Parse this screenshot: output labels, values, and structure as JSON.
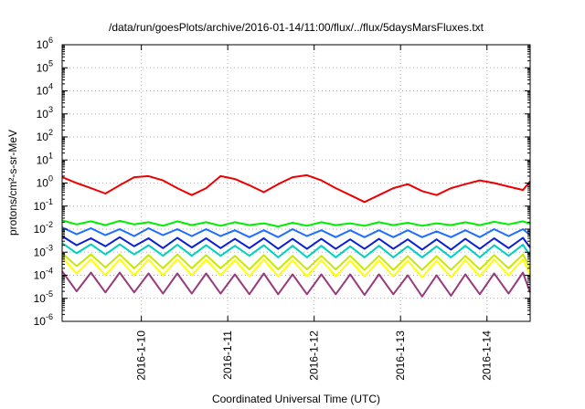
{
  "chart_data": {
    "type": "line",
    "title": "/data/run/goesPlots/archive/2016-01-14/11:00/flux/../flux/5daysMarsFluxes.txt",
    "xlabel": "Coordinated Universal Time (UTC)",
    "ylabel": "protons/cm²-s-sr-MeV",
    "yscale": "log",
    "ylim": [
      1e-06,
      1000000.0
    ],
    "y_ticks": [
      {
        "value": 1e-06,
        "base": "10",
        "exp": "-6"
      },
      {
        "value": 1e-05,
        "base": "10",
        "exp": "-5"
      },
      {
        "value": 0.0001,
        "base": "10",
        "exp": "-4"
      },
      {
        "value": 0.001,
        "base": "10",
        "exp": "-3"
      },
      {
        "value": 0.01,
        "base": "10",
        "exp": "-2"
      },
      {
        "value": 0.1,
        "base": "10",
        "exp": "-1"
      },
      {
        "value": 1.0,
        "base": "10",
        "exp": "0"
      },
      {
        "value": 10.0,
        "base": "10",
        "exp": "1"
      },
      {
        "value": 100.0,
        "base": "10",
        "exp": "2"
      },
      {
        "value": 1000.0,
        "base": "10",
        "exp": "3"
      },
      {
        "value": 10000.0,
        "base": "10",
        "exp": "4"
      },
      {
        "value": 100000.0,
        "base": "10",
        "exp": "5"
      },
      {
        "value": 1000000.0,
        "base": "10",
        "exp": "6"
      }
    ],
    "xlim": [
      "2016-01-09 02:00",
      "2016-01-14 12:00"
    ],
    "x_ticks": [
      {
        "value": "2016-01-10",
        "label": "2016-1-10"
      },
      {
        "value": "2016-01-11",
        "label": "2016-1-11"
      },
      {
        "value": "2016-01-12",
        "label": "2016-1-12"
      },
      {
        "value": "2016-01-13",
        "label": "2016-1-13"
      },
      {
        "value": "2016-01-14",
        "label": "2016-1-14"
      }
    ],
    "grid": true,
    "x": [
      "2016-01-09 02:00",
      "2016-01-09 06:00",
      "2016-01-09 10:00",
      "2016-01-09 14:00",
      "2016-01-09 18:00",
      "2016-01-09 22:00",
      "2016-01-10 02:00",
      "2016-01-10 06:00",
      "2016-01-10 10:00",
      "2016-01-10 14:00",
      "2016-01-10 18:00",
      "2016-01-10 22:00",
      "2016-01-11 02:00",
      "2016-01-11 06:00",
      "2016-01-11 10:00",
      "2016-01-11 14:00",
      "2016-01-11 18:00",
      "2016-01-11 22:00",
      "2016-01-12 02:00",
      "2016-01-12 06:00",
      "2016-01-12 10:00",
      "2016-01-12 14:00",
      "2016-01-12 18:00",
      "2016-01-12 22:00",
      "2016-01-13 02:00",
      "2016-01-13 06:00",
      "2016-01-13 10:00",
      "2016-01-13 14:00",
      "2016-01-13 18:00",
      "2016-01-13 22:00",
      "2016-01-14 02:00",
      "2016-01-14 06:00",
      "2016-01-14 10:00",
      "2016-01-14 12:00"
    ],
    "series": [
      {
        "color": "#ee0000",
        "values": [
          1.8,
          1.0,
          0.6,
          0.35,
          0.8,
          1.8,
          2.0,
          1.3,
          0.6,
          0.3,
          0.6,
          2.0,
          1.5,
          0.8,
          0.4,
          0.9,
          1.8,
          2.2,
          1.3,
          0.6,
          0.3,
          0.15,
          0.3,
          0.6,
          0.9,
          0.45,
          0.3,
          0.6,
          0.9,
          1.3,
          1.0,
          0.7,
          0.5,
          1.2
        ]
      },
      {
        "color": "#00ee00",
        "values": [
          0.024,
          0.016,
          0.022,
          0.015,
          0.023,
          0.016,
          0.02,
          0.014,
          0.022,
          0.015,
          0.02,
          0.014,
          0.02,
          0.015,
          0.018,
          0.013,
          0.019,
          0.014,
          0.02,
          0.015,
          0.018,
          0.014,
          0.02,
          0.015,
          0.019,
          0.014,
          0.018,
          0.015,
          0.02,
          0.015,
          0.021,
          0.016,
          0.022,
          0.017
        ]
      },
      {
        "color": "#1e6fff",
        "values": [
          0.012,
          0.006,
          0.011,
          0.0055,
          0.01,
          0.005,
          0.011,
          0.0055,
          0.01,
          0.005,
          0.01,
          0.005,
          0.009,
          0.0045,
          0.009,
          0.0045,
          0.01,
          0.005,
          0.009,
          0.0045,
          0.009,
          0.0045,
          0.009,
          0.0045,
          0.009,
          0.0045,
          0.008,
          0.0045,
          0.009,
          0.0045,
          0.01,
          0.005,
          0.01,
          0.0055
        ]
      },
      {
        "color": "#0a1fd8",
        "values": [
          0.005,
          0.002,
          0.004,
          0.0018,
          0.0045,
          0.0018,
          0.004,
          0.0015,
          0.0042,
          0.0016,
          0.004,
          0.0015,
          0.0038,
          0.0015,
          0.004,
          0.0014,
          0.0038,
          0.0014,
          0.0038,
          0.0014,
          0.0036,
          0.0014,
          0.0038,
          0.0014,
          0.0036,
          0.0013,
          0.0036,
          0.0013,
          0.0038,
          0.0014,
          0.004,
          0.0015,
          0.0042,
          0.0016
        ]
      },
      {
        "color": "#00d0c0",
        "values": [
          0.0025,
          0.0009,
          0.0022,
          0.0008,
          0.0022,
          0.0008,
          0.002,
          0.0007,
          0.0021,
          0.0007,
          0.002,
          0.0007,
          0.0019,
          0.0007,
          0.002,
          0.0006,
          0.0019,
          0.0006,
          0.0019,
          0.0006,
          0.0018,
          0.0006,
          0.0019,
          0.0006,
          0.0018,
          0.0006,
          0.0018,
          0.0006,
          0.0019,
          0.0006,
          0.002,
          0.0007,
          0.0021,
          0.0007
        ]
      },
      {
        "color": "#c8e800",
        "values": [
          0.0009,
          0.00025,
          0.0008,
          0.00022,
          0.0008,
          0.0002,
          0.00075,
          0.0002,
          0.0008,
          0.0002,
          0.00075,
          0.0002,
          0.0007,
          0.00018,
          0.00075,
          0.00018,
          0.0007,
          0.00018,
          0.0007,
          0.00018,
          0.0007,
          0.00017,
          0.0007,
          0.00017,
          0.00068,
          0.00017,
          0.00068,
          0.00017,
          0.0007,
          0.00018,
          0.00075,
          0.0002,
          0.0008,
          0.00021
        ]
      },
      {
        "color": "#ffff00",
        "values": [
          0.0006,
          0.00012,
          0.0005,
          0.0001,
          0.0005,
          0.0001,
          0.00048,
          0.0001,
          0.0005,
          0.0001,
          0.00048,
          0.0001,
          0.00045,
          9e-05,
          0.00048,
          9e-05,
          0.00045,
          9e-05,
          0.00045,
          9e-05,
          0.00044,
          9e-05,
          0.00045,
          9e-05,
          0.00043,
          8e-05,
          0.00043,
          8e-05,
          0.00045,
          9e-05,
          0.00048,
          0.0001,
          0.0005,
          0.0001
        ]
      },
      {
        "color": "#9a3a7a",
        "values": [
          0.00015,
          2e-05,
          0.00013,
          1.8e-05,
          0.00013,
          1.8e-05,
          0.00012,
          1.6e-05,
          0.00012,
          1.6e-05,
          0.00012,
          1.6e-05,
          0.00011,
          1.5e-05,
          0.00012,
          1.5e-05,
          0.00011,
          1.5e-05,
          0.00011,
          1.5e-05,
          0.00011,
          1.4e-05,
          0.00011,
          1.5e-05,
          0.0001,
          1.2e-05,
          0.0001,
          1.3e-05,
          0.00011,
          1.5e-05,
          0.00012,
          1.6e-05,
          0.00013,
          1.8e-05
        ]
      }
    ]
  }
}
